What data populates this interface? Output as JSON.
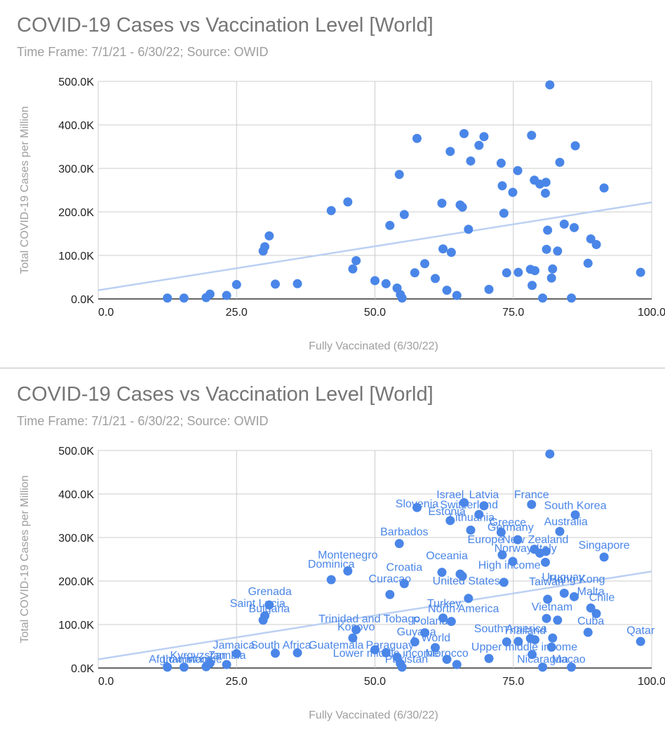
{
  "chart_data": [
    {
      "type": "scatter",
      "title": "COVID-19 Cases vs Vaccination Level [World]",
      "subtitle": "Time Frame: 7/1/21 - 6/30/22; Source: OWID",
      "xlabel": "Fully Vaccinated (6/30/22)",
      "ylabel": "Total COVID-19 Cases per Million",
      "xlim": [
        0,
        100
      ],
      "ylim": [
        0,
        500000
      ],
      "x_ticks": [
        "0.0",
        "25.0",
        "50.0",
        "75.0",
        "100.0"
      ],
      "y_ticks": [
        "0.0K",
        "100.0K",
        "200.0K",
        "300.0K",
        "400.0K",
        "500.0K"
      ],
      "grid": true,
      "point_color": "#4a86e8",
      "trendline": {
        "color": "#bcd0f3",
        "x": [
          0,
          100
        ],
        "y": [
          20000,
          222000
        ]
      },
      "show_labels": false,
      "points": [
        {
          "x": 12.5,
          "y": 2000
        },
        {
          "x": 15.5,
          "y": 2000
        },
        {
          "x": 19.5,
          "y": 3000
        },
        {
          "x": 20.2,
          "y": 11000
        },
        {
          "x": 23.2,
          "y": 8000
        },
        {
          "x": 25.0,
          "y": 33000
        },
        {
          "x": 29.8,
          "y": 110000
        },
        {
          "x": 30.1,
          "y": 120000
        },
        {
          "x": 30.9,
          "y": 145000
        },
        {
          "x": 32.0,
          "y": 34000
        },
        {
          "x": 36.0,
          "y": 35000
        },
        {
          "x": 42.1,
          "y": 203000
        },
        {
          "x": 45.1,
          "y": 223000
        },
        {
          "x": 46.0,
          "y": 69000
        },
        {
          "x": 46.6,
          "y": 88000
        },
        {
          "x": 50.0,
          "y": 42000
        },
        {
          "x": 52.0,
          "y": 35000
        },
        {
          "x": 52.7,
          "y": 169000
        },
        {
          "x": 54.0,
          "y": 25000
        },
        {
          "x": 54.4,
          "y": 286000
        },
        {
          "x": 54.6,
          "y": 10000
        },
        {
          "x": 54.9,
          "y": 2000
        },
        {
          "x": 55.3,
          "y": 194000
        },
        {
          "x": 57.2,
          "y": 60000
        },
        {
          "x": 57.6,
          "y": 369000
        },
        {
          "x": 59.0,
          "y": 81000
        },
        {
          "x": 60.9,
          "y": 47000
        },
        {
          "x": 62.1,
          "y": 220000
        },
        {
          "x": 62.3,
          "y": 115000
        },
        {
          "x": 63.0,
          "y": 20000
        },
        {
          "x": 63.6,
          "y": 339000
        },
        {
          "x": 63.8,
          "y": 107000
        },
        {
          "x": 64.8,
          "y": 8000
        },
        {
          "x": 65.4,
          "y": 216000
        },
        {
          "x": 65.8,
          "y": 211000
        },
        {
          "x": 66.1,
          "y": 380000
        },
        {
          "x": 66.9,
          "y": 160000
        },
        {
          "x": 67.3,
          "y": 317000
        },
        {
          "x": 68.8,
          "y": 353000
        },
        {
          "x": 69.7,
          "y": 373000
        },
        {
          "x": 70.6,
          "y": 22000
        },
        {
          "x": 72.8,
          "y": 312000
        },
        {
          "x": 73.0,
          "y": 260000
        },
        {
          "x": 73.3,
          "y": 197000
        },
        {
          "x": 73.8,
          "y": 60000
        },
        {
          "x": 74.9,
          "y": 245000
        },
        {
          "x": 75.8,
          "y": 295000
        },
        {
          "x": 75.9,
          "y": 61000
        },
        {
          "x": 78.1,
          "y": 68000
        },
        {
          "x": 78.3,
          "y": 376000
        },
        {
          "x": 78.4,
          "y": 31000
        },
        {
          "x": 78.8,
          "y": 273000
        },
        {
          "x": 78.9,
          "y": 65000
        },
        {
          "x": 79.8,
          "y": 264000
        },
        {
          "x": 80.3,
          "y": 2000
        },
        {
          "x": 80.8,
          "y": 243000
        },
        {
          "x": 80.9,
          "y": 268000
        },
        {
          "x": 81.0,
          "y": 114000
        },
        {
          "x": 81.2,
          "y": 158000
        },
        {
          "x": 81.6,
          "y": 492000
        },
        {
          "x": 81.9,
          "y": 48000
        },
        {
          "x": 82.1,
          "y": 69000
        },
        {
          "x": 83.0,
          "y": 110000
        },
        {
          "x": 83.4,
          "y": 314000
        },
        {
          "x": 84.2,
          "y": 172000
        },
        {
          "x": 85.5,
          "y": 2000
        },
        {
          "x": 86.0,
          "y": 164000
        },
        {
          "x": 86.2,
          "y": 352000
        },
        {
          "x": 88.5,
          "y": 82000
        },
        {
          "x": 89.0,
          "y": 138000
        },
        {
          "x": 90.0,
          "y": 125000
        },
        {
          "x": 91.4,
          "y": 255000
        },
        {
          "x": 98.0,
          "y": 61000
        }
      ]
    },
    {
      "type": "scatter",
      "title": "COVID-19 Cases vs Vaccination Level [World]",
      "subtitle": "Time Frame: 7/1/21 - 6/30/22; Source: OWID",
      "xlabel": "Fully Vaccinated (6/30/22)",
      "ylabel": "Total COVID-19 Cases per Million",
      "xlim": [
        0,
        100
      ],
      "ylim": [
        0,
        500000
      ],
      "x_ticks": [
        "0.0",
        "25.0",
        "50.0",
        "75.0",
        "100.0"
      ],
      "y_ticks": [
        "0.0K",
        "100.0K",
        "200.0K",
        "300.0K",
        "400.0K",
        "500.0K"
      ],
      "grid": true,
      "point_color": "#4a86e8",
      "trendline": {
        "color": "#bcd0f3",
        "x": [
          0,
          100
        ],
        "y": [
          20000,
          222000
        ]
      },
      "show_labels": true,
      "points": [
        {
          "x": 12.5,
          "y": 2000
        },
        {
          "x": 15.5,
          "y": 2000
        },
        {
          "x": 19.5,
          "y": 3000
        },
        {
          "x": 20.2,
          "y": 11000
        },
        {
          "x": 23.2,
          "y": 8000
        },
        {
          "x": 25.0,
          "y": 33000
        },
        {
          "x": 29.8,
          "y": 110000
        },
        {
          "x": 30.1,
          "y": 120000
        },
        {
          "x": 30.9,
          "y": 145000
        },
        {
          "x": 32.0,
          "y": 34000
        },
        {
          "x": 36.0,
          "y": 35000
        },
        {
          "x": 42.1,
          "y": 203000
        },
        {
          "x": 45.1,
          "y": 223000
        },
        {
          "x": 46.0,
          "y": 69000
        },
        {
          "x": 46.6,
          "y": 88000
        },
        {
          "x": 50.0,
          "y": 42000
        },
        {
          "x": 52.0,
          "y": 35000
        },
        {
          "x": 52.7,
          "y": 169000
        },
        {
          "x": 54.0,
          "y": 25000
        },
        {
          "x": 54.4,
          "y": 286000
        },
        {
          "x": 54.6,
          "y": 10000
        },
        {
          "x": 54.9,
          "y": 2000
        },
        {
          "x": 55.3,
          "y": 194000
        },
        {
          "x": 57.2,
          "y": 60000
        },
        {
          "x": 57.6,
          "y": 369000
        },
        {
          "x": 59.0,
          "y": 81000
        },
        {
          "x": 60.9,
          "y": 47000
        },
        {
          "x": 62.1,
          "y": 220000
        },
        {
          "x": 62.3,
          "y": 115000
        },
        {
          "x": 63.0,
          "y": 20000
        },
        {
          "x": 63.6,
          "y": 339000
        },
        {
          "x": 63.8,
          "y": 107000
        },
        {
          "x": 64.8,
          "y": 8000
        },
        {
          "x": 65.4,
          "y": 216000
        },
        {
          "x": 65.8,
          "y": 211000
        },
        {
          "x": 66.1,
          "y": 380000
        },
        {
          "x": 66.9,
          "y": 160000
        },
        {
          "x": 67.3,
          "y": 317000
        },
        {
          "x": 68.8,
          "y": 353000
        },
        {
          "x": 69.7,
          "y": 373000
        },
        {
          "x": 70.6,
          "y": 22000
        },
        {
          "x": 72.8,
          "y": 312000
        },
        {
          "x": 73.0,
          "y": 260000
        },
        {
          "x": 73.3,
          "y": 197000
        },
        {
          "x": 73.8,
          "y": 60000
        },
        {
          "x": 74.9,
          "y": 245000
        },
        {
          "x": 75.8,
          "y": 295000
        },
        {
          "x": 75.9,
          "y": 61000
        },
        {
          "x": 78.1,
          "y": 68000
        },
        {
          "x": 78.3,
          "y": 376000
        },
        {
          "x": 78.4,
          "y": 31000
        },
        {
          "x": 78.8,
          "y": 273000
        },
        {
          "x": 78.9,
          "y": 65000
        },
        {
          "x": 79.8,
          "y": 264000
        },
        {
          "x": 80.3,
          "y": 2000
        },
        {
          "x": 80.8,
          "y": 243000
        },
        {
          "x": 80.9,
          "y": 268000
        },
        {
          "x": 81.0,
          "y": 114000
        },
        {
          "x": 81.2,
          "y": 158000
        },
        {
          "x": 81.6,
          "y": 492000
        },
        {
          "x": 81.9,
          "y": 48000
        },
        {
          "x": 82.1,
          "y": 69000
        },
        {
          "x": 83.0,
          "y": 110000
        },
        {
          "x": 83.4,
          "y": 314000
        },
        {
          "x": 84.2,
          "y": 172000
        },
        {
          "x": 85.5,
          "y": 2000
        },
        {
          "x": 86.0,
          "y": 164000
        },
        {
          "x": 86.2,
          "y": 352000
        },
        {
          "x": 88.5,
          "y": 82000
        },
        {
          "x": 89.0,
          "y": 138000
        },
        {
          "x": 90.0,
          "y": 125000
        },
        {
          "x": 91.4,
          "y": 255000
        },
        {
          "x": 98.0,
          "y": 61000
        }
      ],
      "labels": [
        {
          "text": "Slovenia",
          "x": 57.6,
          "y": 369000
        },
        {
          "text": "Israel",
          "x": 63.6,
          "y": 390000
        },
        {
          "text": "Latvia",
          "x": 69.7,
          "y": 390000
        },
        {
          "text": "France",
          "x": 78.3,
          "y": 390000
        },
        {
          "text": "Switzerland",
          "x": 67.0,
          "y": 367000
        },
        {
          "text": "South Korea",
          "x": 86.2,
          "y": 365000
        },
        {
          "text": "Estonia",
          "x": 63.0,
          "y": 352000
        },
        {
          "text": "Lithuania",
          "x": 67.5,
          "y": 338000
        },
        {
          "text": "Greece",
          "x": 74.0,
          "y": 327000
        },
        {
          "text": "Australia",
          "x": 84.5,
          "y": 328000
        },
        {
          "text": "Germany",
          "x": 74.5,
          "y": 315000
        },
        {
          "text": "Barbados",
          "x": 55.3,
          "y": 305000
        },
        {
          "text": "Europe",
          "x": 70.0,
          "y": 287000
        },
        {
          "text": "New Zealand",
          "x": 79.0,
          "y": 287000
        },
        {
          "text": "Norway",
          "x": 75.0,
          "y": 267000
        },
        {
          "text": "Italy",
          "x": 81.0,
          "y": 267000
        },
        {
          "text": "Singapore",
          "x": 91.4,
          "y": 274000
        },
        {
          "text": "Montenegro",
          "x": 45.1,
          "y": 252000
        },
        {
          "text": "Oceania",
          "x": 63.0,
          "y": 250000
        },
        {
          "text": "Dominica",
          "x": 42.1,
          "y": 231000
        },
        {
          "text": "High income",
          "x": 74.3,
          "y": 228000
        },
        {
          "text": "Croatia",
          "x": 55.3,
          "y": 223000
        },
        {
          "text": "Uruguay",
          "x": 84.0,
          "y": 201000
        },
        {
          "text": "Hong Kong",
          "x": 86.5,
          "y": 196000
        },
        {
          "text": "Curacao",
          "x": 52.7,
          "y": 197000
        },
        {
          "text": "United States",
          "x": 66.5,
          "y": 192000
        },
        {
          "text": "Taiwan",
          "x": 81.0,
          "y": 190000
        },
        {
          "text": "Malta",
          "x": 89.0,
          "y": 168000
        },
        {
          "text": "Grenada",
          "x": 31.0,
          "y": 168000
        },
        {
          "text": "Chile",
          "x": 91.0,
          "y": 154000
        },
        {
          "text": "Saint Lucia",
          "x": 28.8,
          "y": 140000
        },
        {
          "text": "Turkey",
          "x": 62.5,
          "y": 140000
        },
        {
          "text": "Bulgaria",
          "x": 30.9,
          "y": 128000
        },
        {
          "text": "North America",
          "x": 66.0,
          "y": 128000
        },
        {
          "text": "Vietnam",
          "x": 82.0,
          "y": 132000
        },
        {
          "text": "Trinidad and Tobago",
          "x": 49.0,
          "y": 105000
        },
        {
          "text": "Poland",
          "x": 60.0,
          "y": 100000
        },
        {
          "text": "Cuba",
          "x": 89.0,
          "y": 100000
        },
        {
          "text": "Kosovo",
          "x": 46.6,
          "y": 86000
        },
        {
          "text": "South America",
          "x": 74.5,
          "y": 82000
        },
        {
          "text": "Thailand",
          "x": 77.0,
          "y": 78000
        },
        {
          "text": "Qatar",
          "x": 98.0,
          "y": 78000
        },
        {
          "text": "Guyana",
          "x": 57.5,
          "y": 75000
        },
        {
          "text": "World",
          "x": 61.0,
          "y": 61000
        },
        {
          "text": "Jamaica",
          "x": 24.5,
          "y": 44000
        },
        {
          "text": "South Africa",
          "x": 33.0,
          "y": 44000
        },
        {
          "text": "Guatemala",
          "x": 43.0,
          "y": 44000
        },
        {
          "text": "Paraguay",
          "x": 52.7,
          "y": 44000
        },
        {
          "text": "Upper middle income",
          "x": 77.0,
          "y": 40000
        },
        {
          "text": "Lower middle income",
          "x": 52.0,
          "y": 26000
        },
        {
          "text": "Morocco",
          "x": 63.0,
          "y": 26000
        },
        {
          "text": "Kyrgyzstan",
          "x": 18.0,
          "y": 21000
        },
        {
          "text": "Zambia",
          "x": 23.3,
          "y": 21000
        },
        {
          "text": "Afghanistan",
          "x": 14.5,
          "y": 12000
        },
        {
          "text": "Low income",
          "x": 17.0,
          "y": 12000
        },
        {
          "text": "Pakistan",
          "x": 55.7,
          "y": 12000
        },
        {
          "text": "Nicaragua",
          "x": 80.3,
          "y": 12000
        },
        {
          "text": "Macao",
          "x": 85.0,
          "y": 12000
        }
      ]
    }
  ]
}
